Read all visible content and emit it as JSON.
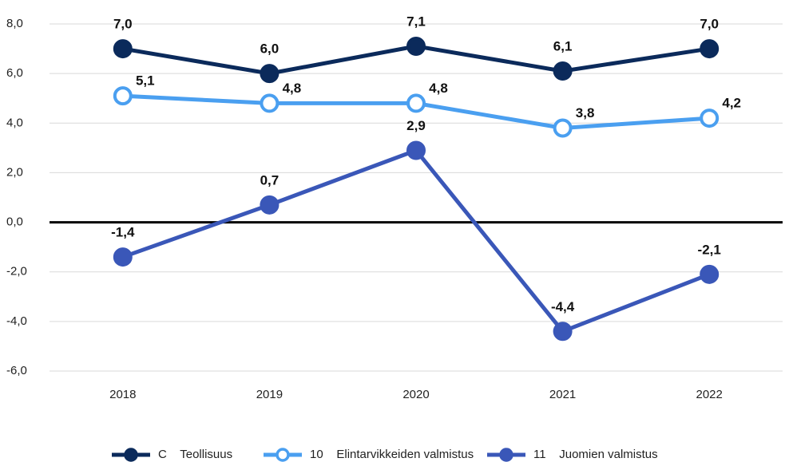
{
  "chart_data": {
    "type": "line",
    "categories": [
      "2018",
      "2019",
      "2020",
      "2021",
      "2022"
    ],
    "series": [
      {
        "name": "C    Teollisuus",
        "color": "#0b2a5b",
        "marker_fill": "#0b2a5b",
        "values": [
          7.0,
          6.0,
          7.1,
          6.1,
          7.0
        ],
        "value_labels": [
          "7,0",
          "6,0",
          "7,1",
          "6,1",
          "7,0"
        ]
      },
      {
        "name": "10    Elintarvikkeiden valmistus",
        "color": "#4a9ff0",
        "marker_fill": "#ffffff",
        "values": [
          5.1,
          4.8,
          4.8,
          3.8,
          4.2
        ],
        "value_labels": [
          "5,1",
          "4,8",
          "4,8",
          "3,8",
          "4,2"
        ]
      },
      {
        "name": "11    Juomien valmistus",
        "color": "#3a57b8",
        "marker_fill": "#3a57b8",
        "values": [
          -1.4,
          0.7,
          2.9,
          -4.4,
          -2.1
        ],
        "value_labels": [
          "-1,4",
          "0,7",
          "2,9",
          "-4,4",
          "-2,1"
        ]
      }
    ],
    "ylim": [
      -6,
      8
    ],
    "yticks": [
      {
        "value": -6,
        "label": "-6,0"
      },
      {
        "value": -4,
        "label": "-4,0"
      },
      {
        "value": -2,
        "label": "-2,0"
      },
      {
        "value": 0,
        "label": "0,0"
      },
      {
        "value": 2,
        "label": "2,0"
      },
      {
        "value": 4,
        "label": "4,0"
      },
      {
        "value": 6,
        "label": "6,0"
      },
      {
        "value": 8,
        "label": "8,0"
      }
    ],
    "grid": true,
    "legend": "bottom"
  }
}
